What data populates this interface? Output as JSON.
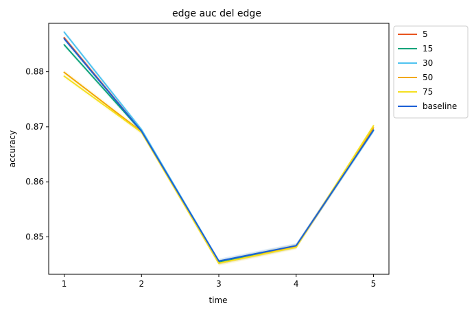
{
  "chart_data": {
    "type": "line",
    "title": "edge auc del edge",
    "xlabel": "time",
    "ylabel": "accuracy",
    "x": [
      1,
      2,
      3,
      4,
      5
    ],
    "xticks": [
      "1",
      "2",
      "3",
      "4",
      "5"
    ],
    "yticks": [
      "0.85",
      "0.86",
      "0.87",
      "0.88"
    ],
    "xlim": [
      0.8,
      5.2
    ],
    "ylim": [
      0.8432,
      0.8888
    ],
    "grid": false,
    "legend_position": "outside-top-right",
    "series": [
      {
        "name": "5",
        "color": "#e8541e",
        "values": [
          0.8862,
          0.8692,
          0.8454,
          0.8483,
          0.8694
        ]
      },
      {
        "name": "15",
        "color": "#0fa37a",
        "values": [
          0.8849,
          0.8692,
          0.8454,
          0.8483,
          0.8694
        ]
      },
      {
        "name": "30",
        "color": "#4ec3f0",
        "values": [
          0.8872,
          0.8695,
          0.8456,
          0.8484,
          0.8693
        ]
      },
      {
        "name": "50",
        "color": "#f2a900",
        "values": [
          0.8799,
          0.8691,
          0.8452,
          0.8482,
          0.8698
        ]
      },
      {
        "name": "75",
        "color": "#f5e020",
        "values": [
          0.8792,
          0.869,
          0.8452,
          0.8481,
          0.8702
        ]
      },
      {
        "name": "baseline",
        "color": "#1a5fd6",
        "values": [
          0.886,
          0.8692,
          0.8456,
          0.8484,
          0.8694
        ]
      }
    ]
  }
}
